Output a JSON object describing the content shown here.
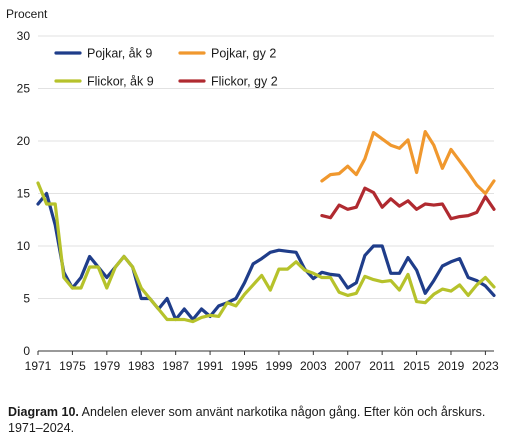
{
  "chart_data": {
    "type": "line",
    "ylabel": "Procent",
    "ylim": [
      0,
      30
    ],
    "xlim": [
      1971,
      2024
    ],
    "yticks": [
      0,
      5,
      10,
      15,
      20,
      25,
      30
    ],
    "xticks": [
      1971,
      1975,
      1979,
      1983,
      1987,
      1991,
      1995,
      1999,
      2003,
      2007,
      2011,
      2015,
      2019,
      2023
    ],
    "grid": "horizontal",
    "legend_position": "top-left",
    "series": [
      {
        "name": "Pojkar, åk 9",
        "color": "#1f3d8a",
        "x": [
          1971,
          1972,
          1973,
          1974,
          1975,
          1976,
          1977,
          1978,
          1979,
          1980,
          1981,
          1982,
          1983,
          1984,
          1985,
          1986,
          1987,
          1988,
          1989,
          1990,
          1991,
          1992,
          1993,
          1994,
          1995,
          1996,
          1997,
          1998,
          1999,
          2000,
          2001,
          2002,
          2003,
          2004,
          2005,
          2006,
          2007,
          2008,
          2009,
          2010,
          2011,
          2012,
          2013,
          2014,
          2015,
          2016,
          2017,
          2018,
          2019,
          2020,
          2021,
          2022,
          2023,
          2024
        ],
        "values": [
          14,
          15,
          12,
          7.5,
          6,
          7,
          9,
          8,
          7,
          8,
          9,
          8,
          5,
          5,
          4,
          5,
          3,
          4,
          3,
          4,
          3.3,
          4.3,
          4.6,
          5,
          6.5,
          8.3,
          8.8,
          9.4,
          9.6,
          9.5,
          9.4,
          7.8,
          6.9,
          7.5,
          7.3,
          7.2,
          6,
          6.5,
          9.1,
          10,
          10,
          7.4,
          7.4,
          8.9,
          7.7,
          5.5,
          6.7,
          8.1,
          8.5,
          8.8,
          7,
          6.7,
          6.2,
          5.3
        ]
      },
      {
        "name": "Pojkar, gy 2",
        "color": "#f0982e",
        "x": [
          2004,
          2005,
          2006,
          2007,
          2008,
          2009,
          2010,
          2011,
          2012,
          2013,
          2014,
          2015,
          2016,
          2017,
          2018,
          2019,
          2020,
          2021,
          2022,
          2023,
          2024
        ],
        "values": [
          16.2,
          16.8,
          16.9,
          17.6,
          16.8,
          18.3,
          20.8,
          20.2,
          19.6,
          19.3,
          20.1,
          17,
          20.9,
          19.6,
          17.4,
          19.2,
          18.1,
          17,
          15.8,
          15,
          16.2
        ]
      },
      {
        "name": "Flickor, åk 9",
        "color": "#b6c22b",
        "x": [
          1971,
          1972,
          1973,
          1974,
          1975,
          1976,
          1977,
          1978,
          1979,
          1980,
          1981,
          1982,
          1983,
          1984,
          1985,
          1986,
          1987,
          1988,
          1989,
          1990,
          1991,
          1992,
          1993,
          1994,
          1995,
          1996,
          1997,
          1998,
          1999,
          2000,
          2001,
          2002,
          2003,
          2004,
          2005,
          2006,
          2007,
          2008,
          2009,
          2010,
          2011,
          2012,
          2013,
          2014,
          2015,
          2016,
          2017,
          2018,
          2019,
          2020,
          2021,
          2022,
          2023,
          2024
        ],
        "values": [
          16,
          14,
          14,
          7,
          6,
          6,
          8,
          8,
          6,
          8,
          9,
          8,
          6,
          5,
          4,
          3,
          3,
          3,
          2.8,
          3.2,
          3.4,
          3.3,
          4.6,
          4.3,
          5.4,
          6.3,
          7.2,
          5.8,
          7.8,
          7.8,
          8.5,
          7.7,
          7.4,
          7,
          7,
          5.6,
          5.3,
          5.5,
          7.1,
          6.8,
          6.6,
          6.7,
          5.8,
          7.3,
          4.7,
          4.6,
          5.4,
          5.9,
          5.7,
          6.3,
          5.3,
          6.3,
          7,
          6.1
        ]
      },
      {
        "name": "Flickor, gy 2",
        "color": "#b02a30",
        "x": [
          2004,
          2005,
          2006,
          2007,
          2008,
          2009,
          2010,
          2011,
          2012,
          2013,
          2014,
          2015,
          2016,
          2017,
          2018,
          2019,
          2020,
          2021,
          2022,
          2023,
          2024
        ],
        "values": [
          12.9,
          12.7,
          13.9,
          13.5,
          13.7,
          15.5,
          15.1,
          13.7,
          14.5,
          13.8,
          14.3,
          13.5,
          14,
          13.9,
          14,
          12.6,
          12.8,
          12.9,
          13.2,
          14.7,
          13.5
        ]
      }
    ]
  },
  "caption": {
    "label": "Diagram 10.",
    "text": " Andelen elever som använt narkotika någon gång. Efter kön och årskurs. 1971–2024."
  }
}
